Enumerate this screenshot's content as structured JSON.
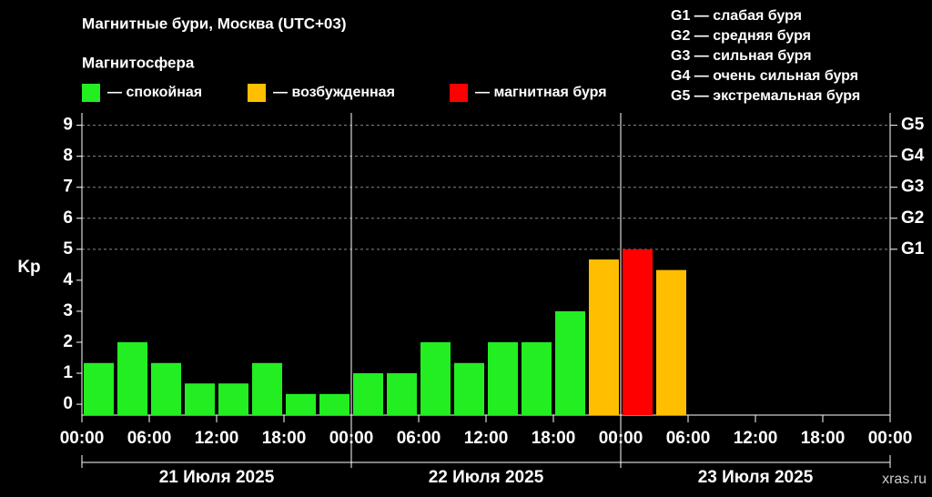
{
  "chart_data": {
    "type": "bar",
    "title": "Магнитные бури, Москва (UTC+03)",
    "subtitle": "Магнитосфера",
    "ylabel": "Kp",
    "watermark": "xras.ru",
    "storm_levels": [
      "G1 — слабая буря",
      "G2 — средняя буря",
      "G3 — сильная буря",
      "G4 — очень сильная буря",
      "G5 — экстремальная буря"
    ],
    "x": [
      0,
      3,
      6,
      9,
      12,
      15,
      18,
      21,
      24,
      27,
      30,
      33,
      36,
      39,
      42,
      45,
      48,
      51,
      54,
      57,
      60,
      63,
      66,
      69
    ],
    "bar_hours": 3,
    "series": [
      {
        "name": "— спокойная",
        "color": "#22ee22",
        "values": [
          1.33,
          2,
          1.33,
          0.67,
          0.67,
          1.33,
          0.33,
          0.33,
          1,
          1,
          2,
          1.33,
          2,
          2,
          3,
          null,
          null,
          null,
          null,
          null,
          null,
          null,
          null,
          null
        ]
      },
      {
        "name": "— возбужденная",
        "color": "#ffbf00",
        "values": [
          null,
          null,
          null,
          null,
          null,
          null,
          null,
          null,
          null,
          null,
          null,
          null,
          null,
          null,
          null,
          4.67,
          null,
          4.33,
          null,
          null,
          null,
          null,
          null,
          null
        ]
      },
      {
        "name": "— магнитная буря",
        "color": "#ff0000",
        "values": [
          null,
          null,
          null,
          null,
          null,
          null,
          null,
          null,
          null,
          null,
          null,
          null,
          null,
          null,
          null,
          null,
          5,
          null,
          null,
          null,
          null,
          null,
          null,
          null
        ]
      }
    ],
    "xlim": [
      0,
      72
    ],
    "xticks": [
      {
        "value": 0,
        "label": "00:00"
      },
      {
        "value": 6,
        "label": "06:00"
      },
      {
        "value": 12,
        "label": "12:00"
      },
      {
        "value": 18,
        "label": "18:00"
      },
      {
        "value": 24,
        "label": "00:00"
      },
      {
        "value": 30,
        "label": "06:00"
      },
      {
        "value": 36,
        "label": "12:00"
      },
      {
        "value": 42,
        "label": "18:00"
      },
      {
        "value": 48,
        "label": "00:00"
      },
      {
        "value": 54,
        "label": "06:00"
      },
      {
        "value": 60,
        "label": "12:00"
      },
      {
        "value": 66,
        "label": "18:00"
      },
      {
        "value": 72,
        "label": "00:00"
      }
    ],
    "days": [
      "21 Июля 2025",
      "22 Июля 2025",
      "23 Июля 2025"
    ],
    "ylim": [
      -0.35,
      9.4
    ],
    "yticks": [
      0,
      1,
      2,
      3,
      4,
      5,
      6,
      7,
      8,
      9
    ],
    "y2ticks": [
      {
        "value": 5,
        "label": "G1"
      },
      {
        "value": 6,
        "label": "G2"
      },
      {
        "value": 7,
        "label": "G3"
      },
      {
        "value": 8,
        "label": "G4"
      },
      {
        "value": 9,
        "label": "G5"
      }
    ],
    "grid": true
  }
}
